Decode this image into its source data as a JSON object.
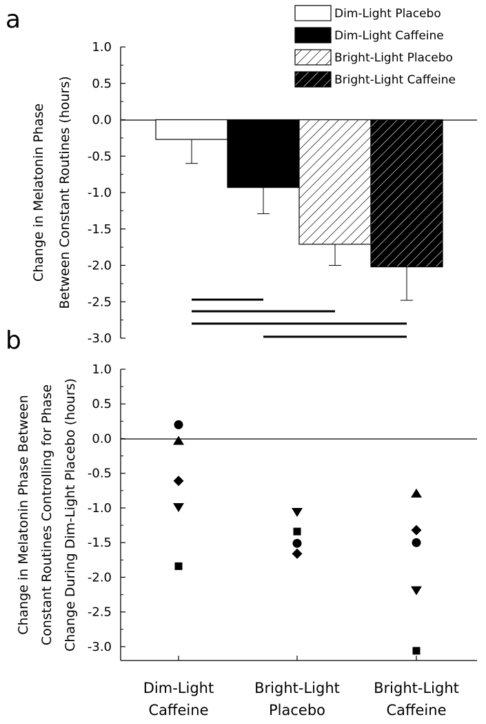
{
  "chart_data": [
    {
      "panel": "a",
      "type": "bar",
      "ylabel_lines": [
        "Change in Melatonin Phase",
        "Between Constant Routines (hours)"
      ],
      "ylim": [
        -3.0,
        1.0
      ],
      "yticks": [
        "1.0",
        "0.5",
        "0.0",
        "-0.5",
        "-1.0",
        "-1.5",
        "-2.0",
        "-2.5",
        "-3.0"
      ],
      "legend_position": "top-right",
      "series": [
        {
          "name": "Dim-Light Placebo",
          "value": -0.27,
          "error": 0.33,
          "color": "#ffffff",
          "pattern": "none"
        },
        {
          "name": "Dim-Light Caffeine",
          "value": -0.93,
          "error": 0.36,
          "color": "#000000",
          "pattern": "none"
        },
        {
          "name": "Bright-Light Placebo",
          "value": -1.71,
          "error": 0.29,
          "color": "#ffffff",
          "pattern": "hatch"
        },
        {
          "name": "Bright-Light Caffeine",
          "value": -2.02,
          "error": 0.46,
          "color": "#000000",
          "pattern": "hatch"
        }
      ],
      "significance_bars": [
        {
          "from_bar": 0,
          "to_bar": 1,
          "y": -2.47
        },
        {
          "from_bar": 0,
          "to_bar": 2,
          "y": -2.63
        },
        {
          "from_bar": 0,
          "to_bar": 3,
          "y": -2.8
        },
        {
          "from_bar": 1,
          "to_bar": 3,
          "y": -2.98
        }
      ]
    },
    {
      "panel": "b",
      "type": "scatter",
      "ylabel_lines": [
        "Change in Melatonin Phase Between",
        "Constant Routines Controlling for Phase",
        "Change During Dim-Light Placebo (hours)"
      ],
      "ylim": [
        -3.2,
        1.0
      ],
      "yticks": [
        "1.0",
        "0.5",
        "0.0",
        "-0.5",
        "-1.0",
        "-1.5",
        "-2.0",
        "-2.5",
        "-3.0"
      ],
      "categories": [
        [
          "Dim-Light",
          "Caffeine"
        ],
        [
          "Bright-Light",
          "Placebo"
        ],
        [
          "Bright-Light",
          "Caffeine"
        ]
      ],
      "points": [
        {
          "category": 0,
          "marker": "circle",
          "y": 0.2
        },
        {
          "category": 0,
          "marker": "triangle-up",
          "y": -0.03
        },
        {
          "category": 0,
          "marker": "diamond",
          "y": -0.61
        },
        {
          "category": 0,
          "marker": "triangle-down",
          "y": -0.99
        },
        {
          "category": 0,
          "marker": "square",
          "y": -1.84
        },
        {
          "category": 1,
          "marker": "triangle-down",
          "y": -1.06
        },
        {
          "category": 1,
          "marker": "square",
          "y": -1.34
        },
        {
          "category": 1,
          "marker": "circle",
          "y": -1.51
        },
        {
          "category": 1,
          "marker": "diamond",
          "y": -1.66
        },
        {
          "category": 2,
          "marker": "triangle-up",
          "y": -0.79
        },
        {
          "category": 2,
          "marker": "diamond",
          "y": -1.32
        },
        {
          "category": 2,
          "marker": "circle",
          "y": -1.5
        },
        {
          "category": 2,
          "marker": "triangle-down",
          "y": -2.19
        },
        {
          "category": 2,
          "marker": "square",
          "y": -3.06
        }
      ]
    }
  ],
  "panel_labels": [
    "a",
    "b"
  ]
}
